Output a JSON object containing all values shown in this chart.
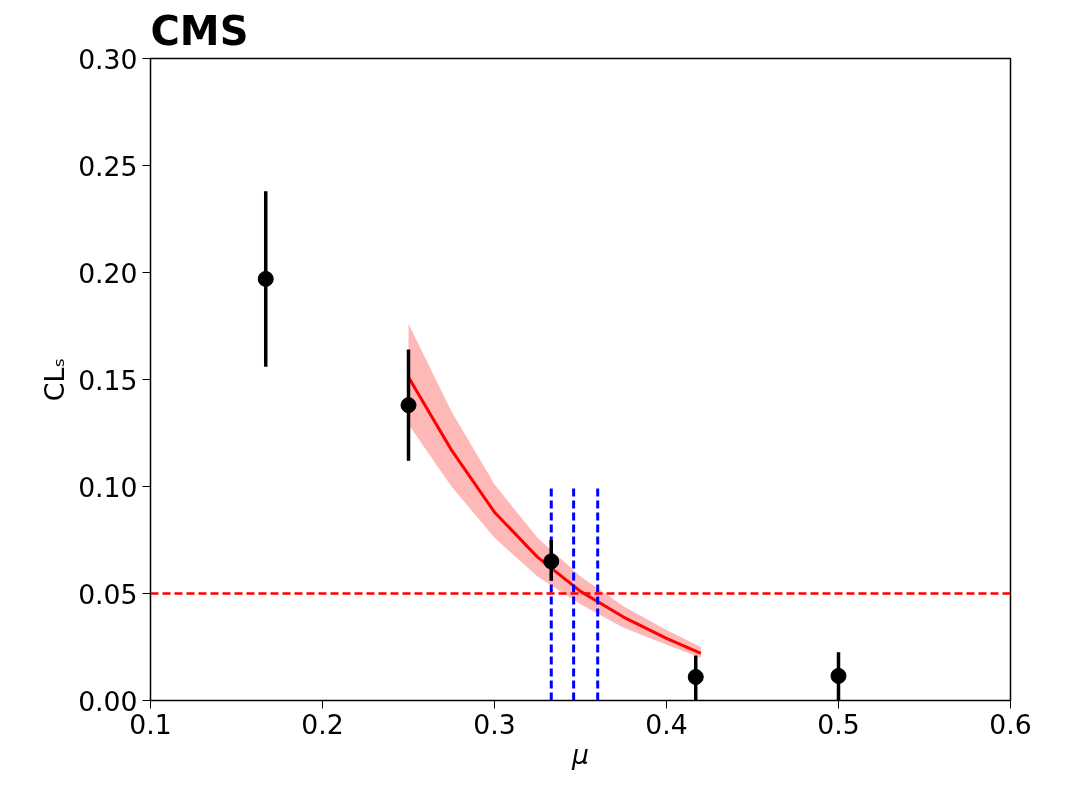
{
  "chart_data": {
    "type": "scatter",
    "title": "CMS",
    "xlabel": "μ",
    "ylabel": "CLₛ",
    "xlim": [
      0.1,
      0.6
    ],
    "xticks": [
      0.1,
      0.2,
      0.3,
      0.4,
      0.5,
      0.6
    ],
    "ylim": [
      0,
      0.3
    ],
    "yticks": [
      {
        "value": 0,
        "label": "0.00"
      },
      {
        "value": 0.05,
        "label": "0.05"
      },
      {
        "value": 0.1,
        "label": "0.10"
      },
      {
        "value": 0.15,
        "label": "0.15"
      },
      {
        "value": 0.2,
        "label": "0.20"
      },
      {
        "value": 0.25,
        "label": "0.25"
      },
      {
        "value": 0.3,
        "label": "0.30"
      }
    ],
    "grid": false,
    "series": [
      {
        "color": "#000000",
        "marker": "circle",
        "x": [
          0.167,
          0.25,
          0.333,
          0.417,
          0.5
        ],
        "values": [
          0.197,
          0.138,
          0.065,
          0.011,
          0.0115
        ],
        "errors": [
          [
            0.156,
            0.238
          ],
          [
            0.112,
            0.164
          ],
          [
            0.056,
            0.075
          ],
          [
            0,
            0.021
          ],
          [
            0,
            0.0225
          ]
        ]
      },
      {
        "type": "line",
        "color": "#ff0000",
        "line_style": "solid",
        "x": [
          0.25,
          0.275,
          0.3,
          0.325,
          0.35,
          0.375,
          0.4,
          0.42
        ],
        "values": [
          0.151,
          0.117,
          0.088,
          0.067,
          0.051,
          0.039,
          0.029,
          0.022
        ],
        "lower": [
          0.129,
          0.1,
          0.076,
          0.058,
          0.045,
          0.034,
          0.026,
          0.02
        ],
        "upper": [
          0.176,
          0.135,
          0.101,
          0.076,
          0.058,
          0.044,
          0.033,
          0.025
        ]
      },
      {
        "type": "line",
        "color": "#0000ff",
        "line_style": "dashed",
        "x": [
          0.333,
          0.333
        ],
        "values": [
          0,
          0.1
        ]
      },
      {
        "type": "line",
        "color": "#0000ff",
        "line_style": "dashed",
        "x": [
          0.346,
          0.346
        ],
        "values": [
          0,
          0.1
        ]
      },
      {
        "type": "line",
        "color": "#0000ff",
        "line_style": "dashed",
        "x": [
          0.36,
          0.36
        ],
        "values": [
          0,
          0.1
        ]
      }
    ],
    "ref_lines": [
      {
        "axis": "y",
        "value": 0.05,
        "color": "#ff0000",
        "line_style": "dashed"
      }
    ]
  }
}
